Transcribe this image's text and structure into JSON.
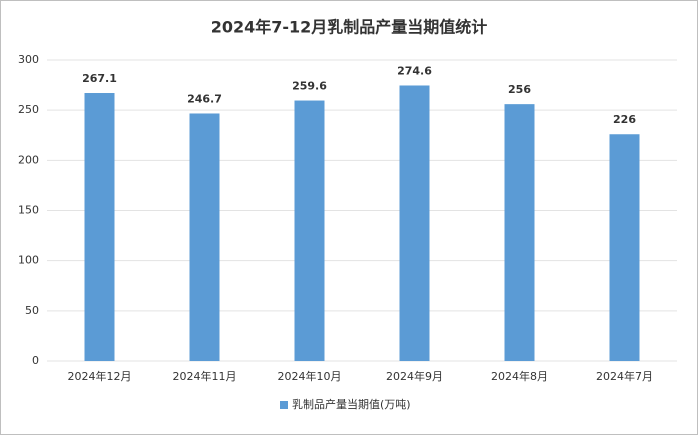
{
  "chart_data": {
    "type": "bar",
    "title": "2024年7-12月乳制品产量当期值统计",
    "categories": [
      "2024年12月",
      "2024年11月",
      "2024年10月",
      "2024年9月",
      "2024年8月",
      "2024年7月"
    ],
    "series": [
      {
        "name": "乳制品产量当期值(万吨)",
        "color": "#5b9bd5",
        "values": [
          267.1,
          246.7,
          259.6,
          274.6,
          256,
          226
        ]
      }
    ],
    "ylim": [
      0,
      300
    ],
    "yticks": [
      0,
      50,
      100,
      150,
      200,
      250,
      300
    ],
    "grid": true,
    "legend": "bottom"
  }
}
